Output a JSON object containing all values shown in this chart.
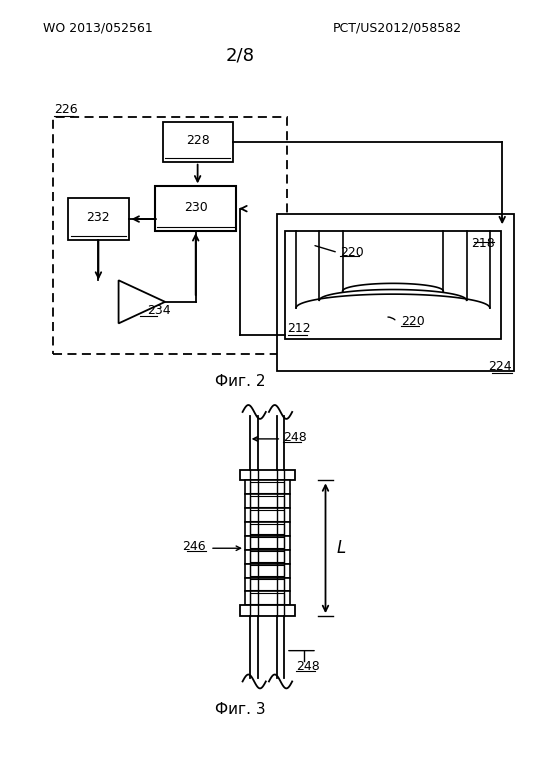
{
  "header_left": "WO 2013/052561",
  "header_right": "PCT/US2012/058582",
  "page_label": "2/8",
  "fig2_label": "Фиг. 2",
  "fig3_label": "Фиг. 3",
  "bg_color": "#ffffff",
  "line_color": "#000000"
}
